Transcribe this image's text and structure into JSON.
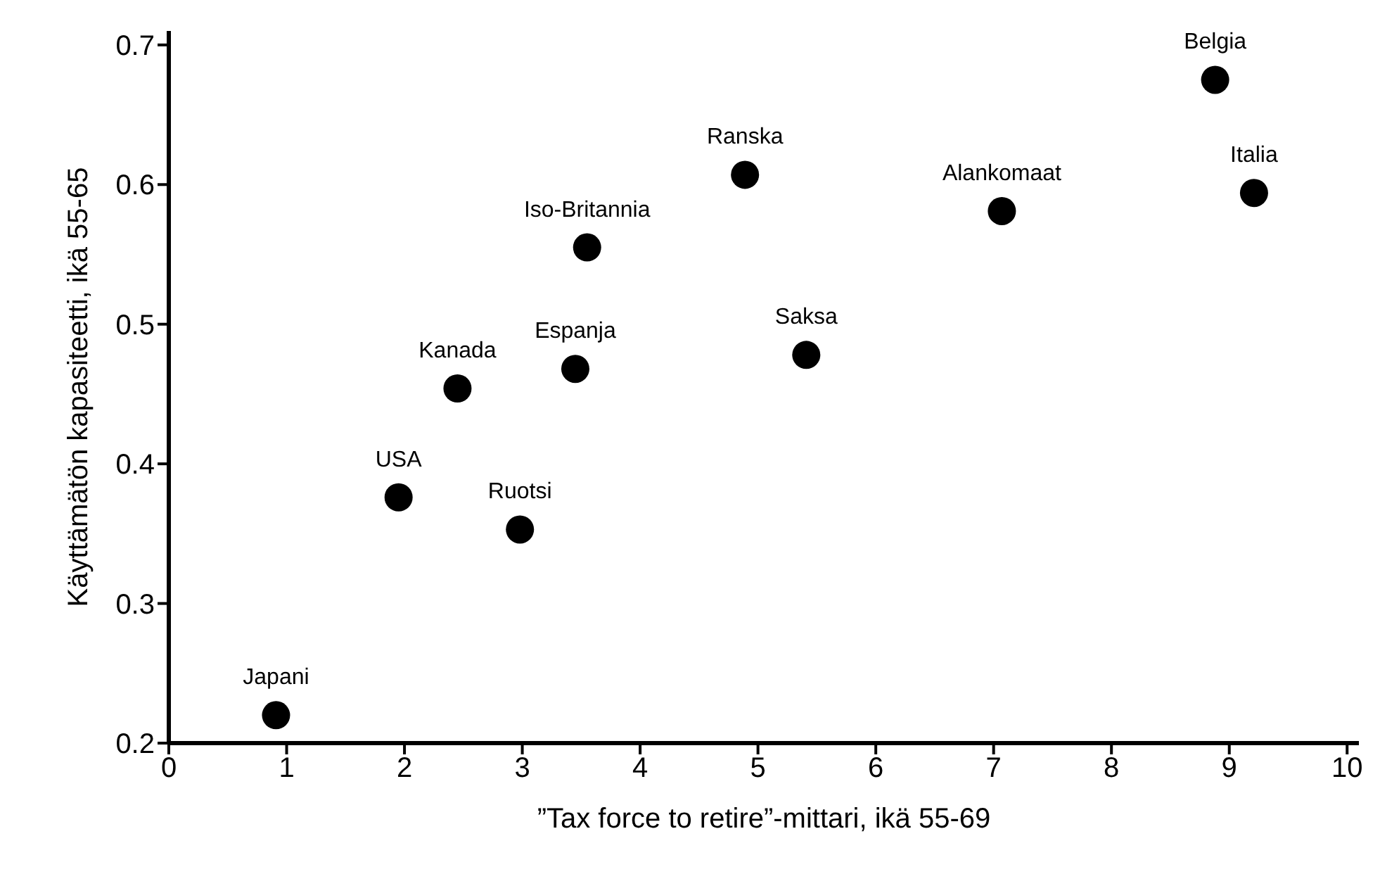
{
  "chart_data": {
    "type": "scatter",
    "xlabel": "”Tax force to retire”-mittari, ikä 55-69",
    "ylabel": "Käyttämätön kapasiteetti, ikä 55-65",
    "x": [
      0.91,
      1.95,
      2.45,
      2.98,
      3.45,
      3.55,
      4.89,
      5.41,
      7.07,
      8.88,
      9.21
    ],
    "series": [
      {
        "color": "#000000",
        "values": [
          0.22,
          0.376,
          0.454,
          0.353,
          0.468,
          0.555,
          0.607,
          0.478,
          0.581,
          0.675,
          0.594
        ]
      }
    ],
    "marker": "circle",
    "xlim": [
      0,
      10.1
    ],
    "xticks": [
      0,
      1,
      2,
      3,
      4,
      5,
      6,
      7,
      8,
      9,
      10
    ],
    "ylim": [
      0.2,
      0.71
    ],
    "yticks": [
      0.2,
      0.3,
      0.4,
      0.5,
      0.6,
      0.7
    ],
    "grid": false,
    "legend": false,
    "annotations": [
      {
        "text": "Japani",
        "x": 0.91,
        "y": 0.22
      },
      {
        "text": "USA",
        "x": 1.95,
        "y": 0.376
      },
      {
        "text": "Kanada",
        "x": 2.45,
        "y": 0.454
      },
      {
        "text": "Ruotsi",
        "x": 2.98,
        "y": 0.353
      },
      {
        "text": "Espanja",
        "x": 3.45,
        "y": 0.468
      },
      {
        "text": "Iso-Britannia",
        "x": 3.55,
        "y": 0.555
      },
      {
        "text": "Ranska",
        "x": 4.89,
        "y": 0.607
      },
      {
        "text": "Saksa",
        "x": 5.41,
        "y": 0.478
      },
      {
        "text": "Alankomaat",
        "x": 7.07,
        "y": 0.581
      },
      {
        "text": "Belgia",
        "x": 8.88,
        "y": 0.675
      },
      {
        "text": "Italia",
        "x": 9.21,
        "y": 0.594
      }
    ]
  }
}
